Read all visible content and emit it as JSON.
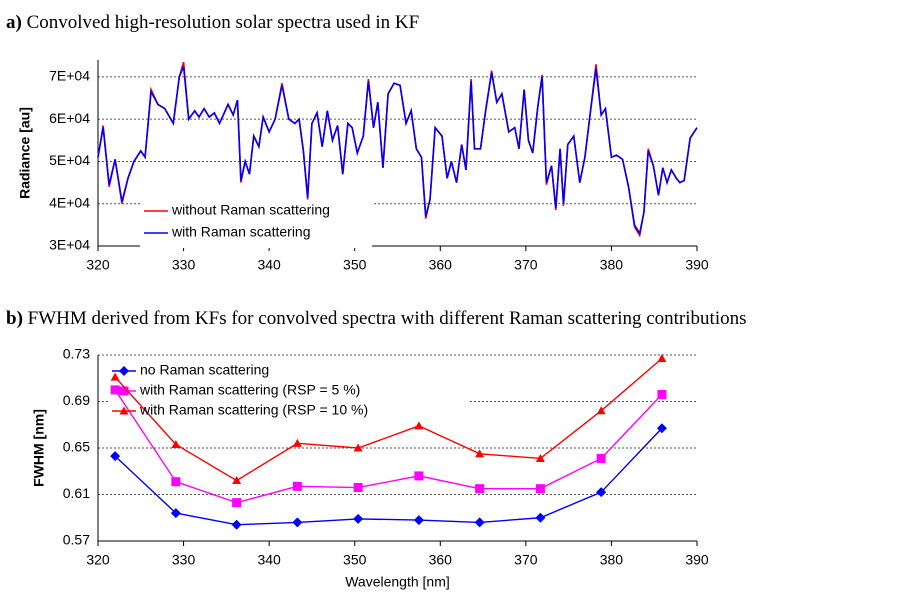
{
  "chart_data": [
    {
      "type": "line",
      "panel_label": "a)",
      "title": "Convolved high-resolution solar spectra used in KF",
      "y_label": "Radiance [au]",
      "grid": true,
      "legend": "lower-left",
      "xlim": [
        320,
        390
      ],
      "xticks": [
        320,
        330,
        340,
        350,
        360,
        370,
        380,
        390
      ],
      "ylim": [
        30000,
        74000
      ],
      "yticks": [
        {
          "value": 30000,
          "label": "3E+04"
        },
        {
          "value": 40000,
          "label": "4E+04"
        },
        {
          "value": 50000,
          "label": "5E+04"
        },
        {
          "value": 60000,
          "label": "6E+04"
        },
        {
          "value": 70000,
          "label": "7E+04"
        }
      ],
      "x": [
        320,
        320.6,
        321.3,
        322,
        322.8,
        323.5,
        324.2,
        325,
        325.5,
        326.2,
        327,
        327.8,
        328.8,
        329.5,
        330,
        330.6,
        331.3,
        331.8,
        332.4,
        333,
        333.6,
        334.2,
        335.2,
        335.8,
        336.3,
        336.7,
        337.2,
        337.7,
        338.2,
        338.8,
        339.3,
        340,
        340.7,
        341.5,
        342.3,
        343,
        343.5,
        344,
        344.5,
        345,
        345.6,
        346.2,
        346.8,
        347.4,
        348,
        348.6,
        349.2,
        349.7,
        350.3,
        351,
        351.6,
        352.2,
        352.7,
        353.3,
        353.9,
        354.6,
        355.3,
        356,
        356.6,
        357.2,
        357.8,
        358.3,
        358.8,
        359.4,
        360.2,
        360.8,
        361.3,
        361.9,
        362.5,
        363,
        363.6,
        364,
        364.7,
        365.3,
        366,
        366.6,
        367.2,
        368,
        368.7,
        369.2,
        369.8,
        370.3,
        370.8,
        371.4,
        371.9,
        372.4,
        373,
        373.5,
        374,
        374.4,
        374.9,
        375.6,
        376.3,
        376.9,
        377.5,
        378.2,
        378.8,
        379.3,
        380,
        380.6,
        381.3,
        382,
        382.7,
        383.3,
        383.8,
        384.3,
        384.9,
        385.5,
        386,
        386.5,
        387,
        387.6,
        388,
        388.5,
        389.2,
        390
      ],
      "series": [
        {
          "name": "without Raman scattering",
          "color": "#ff0000",
          "values": [
            51000,
            58500,
            44000,
            50500,
            40000,
            46000,
            50000,
            52500,
            51000,
            67000,
            63500,
            62500,
            59000,
            70000,
            73500,
            60000,
            62000,
            60500,
            62500,
            60500,
            61500,
            59000,
            63500,
            61000,
            64500,
            45000,
            50000,
            47000,
            56000,
            53500,
            60500,
            57000,
            60000,
            68500,
            60000,
            59000,
            60000,
            52500,
            41000,
            59000,
            61500,
            53500,
            62000,
            55000,
            58500,
            47000,
            59000,
            58000,
            52000,
            56000,
            69500,
            58000,
            64000,
            48500,
            66000,
            68500,
            68000,
            59000,
            62000,
            53000,
            51000,
            36500,
            41000,
            58000,
            56000,
            46000,
            50000,
            45000,
            54000,
            48000,
            69500,
            53000,
            53000,
            62000,
            71500,
            64000,
            66000,
            57000,
            58000,
            53000,
            67000,
            55000,
            52000,
            63000,
            70500,
            44500,
            49000,
            38500,
            53000,
            39500,
            54000,
            56000,
            45000,
            51000,
            61000,
            73000,
            61000,
            62500,
            51000,
            51500,
            50500,
            44000,
            34500,
            32500,
            38000,
            53000,
            49000,
            42000,
            48500,
            45000,
            48000,
            46000,
            45000,
            45500,
            55500,
            58000
          ]
        },
        {
          "name": "with Raman scattering",
          "color": "#0000ff",
          "values": [
            51000,
            58000,
            44500,
            50500,
            40500,
            46000,
            50000,
            52500,
            51000,
            66500,
            63500,
            62500,
            59000,
            70000,
            72500,
            60000,
            62000,
            60500,
            62500,
            60500,
            61500,
            59000,
            63500,
            61000,
            64500,
            45500,
            50000,
            47000,
            56000,
            53500,
            60500,
            57000,
            60000,
            68000,
            60000,
            59000,
            60000,
            52500,
            41500,
            59000,
            61500,
            53500,
            62000,
            55000,
            58500,
            47000,
            59000,
            58000,
            52000,
            56000,
            69000,
            58000,
            64000,
            48500,
            66000,
            68500,
            68000,
            59000,
            62000,
            53000,
            51000,
            37000,
            41000,
            58000,
            56000,
            46000,
            50000,
            45000,
            54000,
            48000,
            69000,
            53000,
            53000,
            62000,
            71000,
            64000,
            66000,
            57000,
            58000,
            53000,
            67000,
            55000,
            52000,
            63000,
            70000,
            45000,
            49000,
            39000,
            53000,
            40000,
            54000,
            56000,
            45000,
            51000,
            61000,
            72000,
            61000,
            62500,
            51000,
            51500,
            50500,
            44000,
            35000,
            33000,
            38000,
            52500,
            49000,
            42000,
            48500,
            45000,
            48000,
            46000,
            45000,
            45500,
            55500,
            58000
          ]
        }
      ]
    },
    {
      "type": "line",
      "panel_label": "b)",
      "title": "FWHM derived from KFs for convolved spectra with different Raman scattering contributions",
      "x_label": "Wavelength [nm]",
      "y_label": "FWHM [nm]",
      "grid": true,
      "legend": "upper-left",
      "xlim": [
        320,
        390
      ],
      "xticks": [
        320,
        330,
        340,
        350,
        360,
        370,
        380,
        390
      ],
      "ylim": [
        0.57,
        0.73
      ],
      "yticks": [
        0.57,
        0.61,
        0.65,
        0.69,
        0.73
      ],
      "x": [
        322.0,
        329.1,
        336.2,
        343.3,
        350.4,
        357.5,
        364.6,
        371.7,
        378.8,
        385.9
      ],
      "series": [
        {
          "name": "no Raman scattering",
          "color": "#0000ff",
          "marker": "diamond",
          "values": [
            0.643,
            0.594,
            0.584,
            0.586,
            0.589,
            0.588,
            0.586,
            0.59,
            0.612,
            0.667
          ]
        },
        {
          "name": "with Raman scattering (RSP = 5 %)",
          "color": "#ff00ff",
          "marker": "square",
          "values": [
            0.7,
            0.621,
            0.603,
            0.617,
            0.616,
            0.626,
            0.615,
            0.615,
            0.641,
            0.696
          ]
        },
        {
          "name": "with Raman scattering (RSP = 10 %)",
          "color": "#ff0000",
          "marker": "triangle",
          "values": [
            0.711,
            0.653,
            0.622,
            0.654,
            0.65,
            0.669,
            0.645,
            0.641,
            0.682,
            0.727
          ]
        }
      ]
    }
  ]
}
